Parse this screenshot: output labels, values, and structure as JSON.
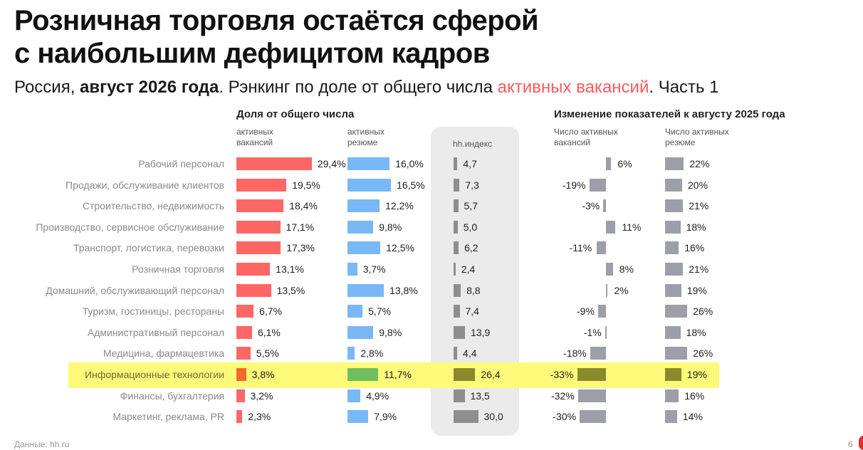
{
  "title_line1": "Розничная торговля остаётся сферой",
  "title_line2": "с наибольшим дефицитом кадров",
  "subtitle": {
    "part1": "Россия, ",
    "bold": "август 2026 года",
    "part2": ". Рэнкинг по доле от общего числа ",
    "accent": "активных вакансий",
    "part3": ". Часть 1"
  },
  "section_left": "Доля от общего числа",
  "section_right": "Изменение показателей к августу 2025 года",
  "col_headers": {
    "vac_share": "активных вакансий",
    "res_share": "активных резюме",
    "hh_index": "hh.индекс",
    "vac_change": "Число активных вакансий",
    "res_change": "Число активных резюме"
  },
  "source": "Данные: hh.ru",
  "page_number": "6",
  "colors": {
    "vacancies": "#ff6666",
    "resumes": "#79b8f7",
    "hh_index": "#8e8e8e",
    "change": "#9c9fa8",
    "highlight": "#fff97a",
    "hl_vacancies": "#f46a28",
    "hl_resumes": "#6fbf60",
    "hl_dark": "#8a8a2c",
    "accent": "#f25c5c"
  },
  "chart_data": {
    "type": "bar",
    "highlighted_category": "Информационные технологии",
    "categories": [
      "Рабочий персонал",
      "Продажи, обслуживание клиентов",
      "Строительство, недвижимость",
      "Производство, сервисное обслуживание",
      "Транспорт, логистика, перевозки",
      "Розничная торговля",
      "Домашний, обслуживающий персонал",
      "Туризм, гостиницы, рестораны",
      "Административный персонал",
      "Медицина, фармацевтика",
      "Информационные технологии",
      "Финансы, бухгалтерия",
      "Маркетинг, реклама, PR"
    ],
    "series": [
      {
        "name": "активных вакансий",
        "values": [
          29.4,
          19.5,
          18.4,
          17.1,
          17.3,
          13.1,
          13.5,
          6.7,
          6.1,
          5.5,
          3.8,
          3.2,
          2.3
        ],
        "labels": [
          "29,4%",
          "19,5%",
          "18,4%",
          "17,1%",
          "17,3%",
          "13,1%",
          "13,5%",
          "6,7%",
          "6,1%",
          "5,5%",
          "3,8%",
          "3,2%",
          "2,3%"
        ]
      },
      {
        "name": "активных резюме",
        "values": [
          16.0,
          16.5,
          12.2,
          9.8,
          12.5,
          3.7,
          13.8,
          5.7,
          9.8,
          2.8,
          11.7,
          4.9,
          7.9
        ],
        "labels": [
          "16,0%",
          "16,5%",
          "12,2%",
          "9,8%",
          "12,5%",
          "3,7%",
          "13,8%",
          "5,7%",
          "9,8%",
          "2,8%",
          "11,7%",
          "4,9%",
          "7,9%"
        ]
      },
      {
        "name": "hh.индекс",
        "values": [
          4.7,
          7.3,
          5.7,
          5.0,
          6.2,
          2.4,
          8.8,
          7.4,
          13.9,
          4.4,
          26.4,
          13.5,
          30.0
        ],
        "labels": [
          "4,7",
          "7,3",
          "5,7",
          "5,0",
          "6,2",
          "2,4",
          "8,8",
          "7,4",
          "13,9",
          "4,4",
          "26,4",
          "13,5",
          "30,0"
        ]
      },
      {
        "name": "Число активных вакансий",
        "values": [
          6,
          -19,
          -3,
          11,
          -11,
          8,
          2,
          -9,
          -1,
          -18,
          -33,
          -32,
          -30
        ],
        "labels": [
          "6%",
          "-19%",
          "-3%",
          "11%",
          "-11%",
          "8%",
          "2%",
          "-9%",
          "-1%",
          "-18%",
          "-33%",
          "-32%",
          "-30%"
        ]
      },
      {
        "name": "Число активных резюме",
        "values": [
          22,
          20,
          21,
          18,
          16,
          21,
          19,
          26,
          18,
          26,
          19,
          16,
          14
        ],
        "labels": [
          "22%",
          "20%",
          "21%",
          "18%",
          "16%",
          "21%",
          "19%",
          "26%",
          "18%",
          "26%",
          "19%",
          "16%",
          "14%"
        ]
      }
    ]
  }
}
